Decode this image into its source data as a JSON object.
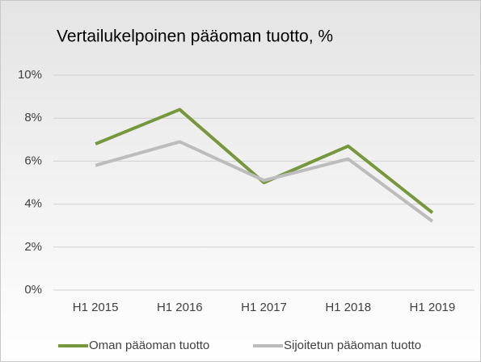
{
  "chart_data": {
    "type": "line",
    "title": "Vertailukelpoinen pääoman tuotto, %",
    "categories": [
      "H1 2015",
      "H1 2016",
      "H1 2017",
      "H1 2018",
      "H1 2019"
    ],
    "series": [
      {
        "name": "Oman pääoman tuotto",
        "color": "#76973b",
        "values": [
          6.8,
          8.4,
          5.0,
          6.7,
          3.6
        ]
      },
      {
        "name": "Sijoitetun pääoman tuotto",
        "color": "#bcbcbc",
        "values": [
          5.8,
          6.9,
          5.1,
          6.1,
          3.2
        ]
      }
    ],
    "ylim": [
      0,
      10
    ],
    "yticks": [
      {
        "value": 0,
        "label": "0%"
      },
      {
        "value": 2,
        "label": "2%"
      },
      {
        "value": 4,
        "label": "4%"
      },
      {
        "value": 6,
        "label": "6%"
      },
      {
        "value": 8,
        "label": "8%"
      },
      {
        "value": 10,
        "label": "10%"
      }
    ],
    "grid": true,
    "legend": "bottom"
  }
}
